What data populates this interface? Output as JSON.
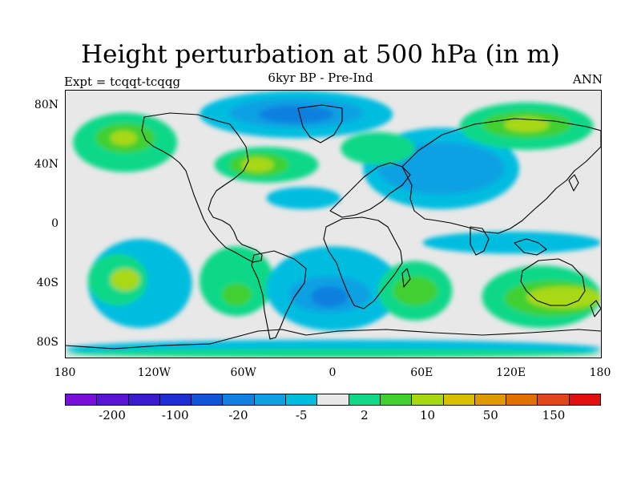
{
  "title": "Height perturbation at 500 hPa (in m)",
  "subtitle": "6kyr BP - Pre-Ind",
  "left_label": "Expt = tcqqt-tcqqg",
  "right_label": "ANN",
  "map": {
    "projection": "cylindrical-equidistant",
    "lon_range": [
      -180,
      180
    ],
    "lat_range": [
      -90,
      90
    ],
    "background_color": "#e8e8e8",
    "coastline_color": "#000000",
    "lat_ticks": [
      {
        "lat": 80,
        "label": "80N"
      },
      {
        "lat": 40,
        "label": "40N"
      },
      {
        "lat": 0,
        "label": "0"
      },
      {
        "lat": -40,
        "label": "40S"
      },
      {
        "lat": -80,
        "label": "80S"
      }
    ],
    "lon_ticks": [
      {
        "lon": -180,
        "label": "180"
      },
      {
        "lon": -120,
        "label": "120W"
      },
      {
        "lon": -60,
        "label": "60W"
      },
      {
        "lon": 0,
        "label": "0"
      },
      {
        "lon": 60,
        "label": "60E"
      },
      {
        "lon": 120,
        "label": "120E"
      },
      {
        "lon": 180,
        "label": "180"
      }
    ]
  },
  "colorbar": {
    "colors": [
      "#7a0fd8",
      "#5a14d2",
      "#3a1ccc",
      "#1f2ed0",
      "#0e55d8",
      "#1180df",
      "#10a0e2",
      "#00bde0",
      "#e8e8e8",
      "#10d888",
      "#40d030",
      "#a8d812",
      "#d8c000",
      "#e09a00",
      "#e07000",
      "#e04818",
      "#e01010"
    ],
    "tick_labels": [
      {
        "after_box": 1,
        "label": "-200"
      },
      {
        "after_box": 3,
        "label": "-100"
      },
      {
        "after_box": 5,
        "label": "-20"
      },
      {
        "after_box": 7,
        "label": "-5"
      },
      {
        "after_box": 9,
        "label": "2"
      },
      {
        "after_box": 11,
        "label": "10"
      },
      {
        "after_box": 13,
        "label": "50"
      },
      {
        "after_box": 15,
        "label": "150"
      }
    ]
  },
  "fields": [
    {
      "name": "arctic-eurasia",
      "color_index": 7,
      "lon": [
        -90,
        40
      ],
      "lat": [
        58,
        90
      ]
    },
    {
      "name": "arctic-eurasia-core",
      "color_index": 6,
      "lon": [
        -70,
        20
      ],
      "lat": [
        65,
        85
      ]
    },
    {
      "name": "arctic-eurasia-deep",
      "color_index": 5,
      "lon": [
        -50,
        0
      ],
      "lat": [
        68,
        80
      ]
    },
    {
      "name": "pacific-north",
      "color_index": 9,
      "lon": [
        -175,
        -105
      ],
      "lat": [
        35,
        75
      ]
    },
    {
      "name": "pacific-north-core",
      "color_index": 10,
      "lon": [
        -160,
        -120
      ],
      "lat": [
        48,
        68
      ]
    },
    {
      "name": "pacific-north-peak",
      "color_index": 11,
      "lon": [
        -150,
        -132
      ],
      "lat": [
        53,
        63
      ]
    },
    {
      "name": "atlantic-north",
      "color_index": 9,
      "lon": [
        -80,
        -10
      ],
      "lat": [
        28,
        52
      ]
    },
    {
      "name": "atlantic-north-core",
      "color_index": 10,
      "lon": [
        -70,
        -30
      ],
      "lat": [
        32,
        48
      ]
    },
    {
      "name": "atlantic-north-peak",
      "color_index": 11,
      "lon": [
        -62,
        -40
      ],
      "lat": [
        35,
        45
      ]
    },
    {
      "name": "asia-low",
      "color_index": 7,
      "lon": [
        20,
        125
      ],
      "lat": [
        10,
        65
      ]
    },
    {
      "name": "asia-low-core",
      "color_index": 6,
      "lon": [
        30,
        115
      ],
      "lat": [
        20,
        55
      ]
    },
    {
      "name": "siberia-high",
      "color_index": 9,
      "lon": [
        85,
        175
      ],
      "lat": [
        50,
        82
      ]
    },
    {
      "name": "siberia-high-core",
      "color_index": 10,
      "lon": [
        100,
        160
      ],
      "lat": [
        58,
        76
      ]
    },
    {
      "name": "siberia-high-peak",
      "color_index": 11,
      "lon": [
        115,
        145
      ],
      "lat": [
        62,
        72
      ]
    },
    {
      "name": "europe-high",
      "color_index": 9,
      "lon": [
        5,
        55
      ],
      "lat": [
        40,
        62
      ]
    },
    {
      "name": "tropic-low",
      "color_index": 7,
      "lon": [
        -45,
        5
      ],
      "lat": [
        10,
        25
      ]
    },
    {
      "name": "pacific-south",
      "color_index": 7,
      "lon": [
        -165,
        -95
      ],
      "lat": [
        -70,
        -10
      ]
    },
    {
      "name": "pacific-south-core",
      "color_index": 9,
      "lon": [
        -165,
        -125
      ],
      "lat": [
        -55,
        -20
      ]
    },
    {
      "name": "pacific-south-peak",
      "color_index": 11,
      "lon": [
        -150,
        -130
      ],
      "lat": [
        -45,
        -30
      ]
    },
    {
      "name": "south-america-high",
      "color_index": 9,
      "lon": [
        -90,
        -40
      ],
      "lat": [
        -62,
        -15
      ]
    },
    {
      "name": "south-america-core",
      "color_index": 10,
      "lon": [
        -75,
        -55
      ],
      "lat": [
        -55,
        -40
      ]
    },
    {
      "name": "atlantic-south-low",
      "color_index": 7,
      "lon": [
        -45,
        45
      ],
      "lat": [
        -72,
        -15
      ]
    },
    {
      "name": "atlantic-south-core",
      "color_index": 6,
      "lon": [
        -30,
        25
      ],
      "lat": [
        -60,
        -35
      ]
    },
    {
      "name": "atlantic-south-deep",
      "color_index": 5,
      "lon": [
        -15,
        10
      ],
      "lat": [
        -56,
        -42
      ]
    },
    {
      "name": "indian-south-high",
      "color_index": 9,
      "lon": [
        30,
        80
      ],
      "lat": [
        -65,
        -25
      ]
    },
    {
      "name": "indian-south-core",
      "color_index": 10,
      "lon": [
        40,
        70
      ],
      "lat": [
        -55,
        -35
      ]
    },
    {
      "name": "australia-high",
      "color_index": 9,
      "lon": [
        100,
        180
      ],
      "lat": [
        -70,
        -28
      ]
    },
    {
      "name": "australia-high-core",
      "color_index": 10,
      "lon": [
        115,
        180
      ],
      "lat": [
        -62,
        -38
      ]
    },
    {
      "name": "australia-high-peak",
      "color_index": 11,
      "lon": [
        130,
        180
      ],
      "lat": [
        -57,
        -42
      ]
    },
    {
      "name": "southern-ocean-low",
      "color_index": 7,
      "lon": [
        -180,
        180
      ],
      "lat": [
        -90,
        -78
      ]
    },
    {
      "name": "antarctic-band",
      "color_index": 9,
      "lon": [
        -180,
        180
      ],
      "lat": [
        -90,
        -84
      ]
    },
    {
      "name": "indian-band",
      "color_index": 7,
      "lon": [
        60,
        180
      ],
      "lat": [
        -20,
        -5
      ]
    }
  ]
}
